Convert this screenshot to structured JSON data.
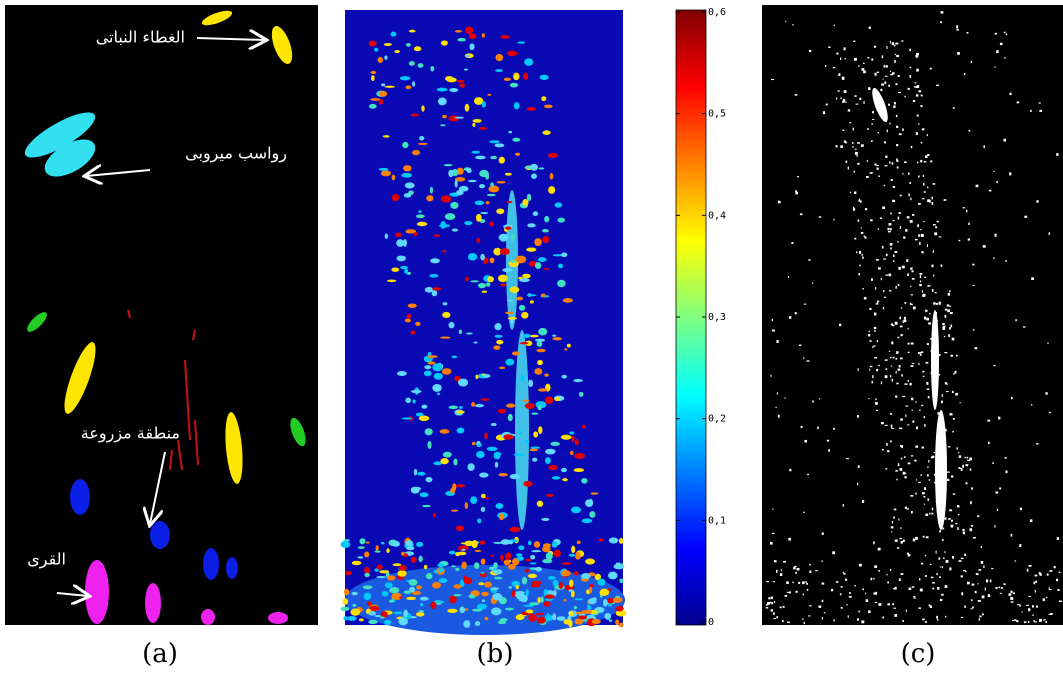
{
  "panels": [
    {
      "label": "(a)",
      "annotations": [
        "الغطاء النباتى",
        "رواسب ميروبى",
        "منطقة مزروعة",
        "القرى"
      ]
    },
    {
      "label": "(b)",
      "colorbar": {
        "lim": [
          0,
          0.6
        ],
        "ticks": [
          0,
          {
            "value": 0.1,
            "label": "0,1"
          },
          {
            "value": 0.2,
            "label": "0,2"
          },
          {
            "value": 0.3,
            "label": "0,3"
          },
          {
            "value": 0.4,
            "label": "0,4"
          },
          {
            "value": 0.5,
            "label": "0,5"
          },
          {
            "value": 0.6,
            "label": "0,6"
          }
        ]
      }
    },
    {
      "label": "(c)"
    }
  ]
}
